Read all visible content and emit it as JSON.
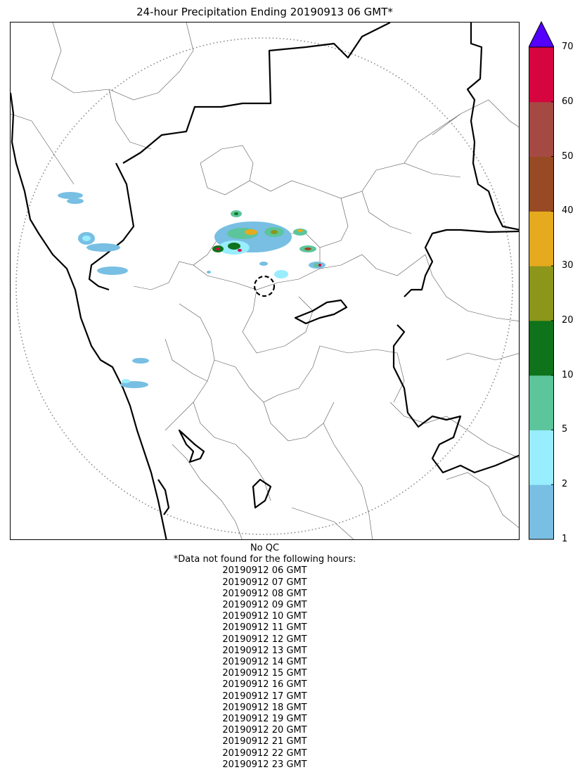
{
  "title": "24-hour Precipitation Ending 20190913 06 GMT*",
  "colorbar": {
    "ticks": [
      "1",
      "2",
      "5",
      "10",
      "20",
      "30",
      "40",
      "50",
      "60",
      "70"
    ],
    "colors": [
      "#78bfe3",
      "#98edff",
      "#5cc59b",
      "#0e731a",
      "#8b961a",
      "#e6aa1e",
      "#974a23",
      "#a54a43",
      "#d6053f"
    ],
    "extend_color": "#5300ff"
  },
  "notes": {
    "qc": "No QC",
    "missing_header": "*Data not found for the following hours:",
    "missing_hours": [
      "20190912 06 GMT",
      "20190912 07 GMT",
      "20190912 08 GMT",
      "20190912 09 GMT",
      "20190912 10 GMT",
      "20190912 11 GMT",
      "20190912 12 GMT",
      "20190912 13 GMT",
      "20190912 14 GMT",
      "20190912 15 GMT",
      "20190912 16 GMT",
      "20190912 17 GMT",
      "20190912 18 GMT",
      "20190912 19 GMT",
      "20190912 20 GMT",
      "20190912 21 GMT",
      "20190912 22 GMT",
      "20190912 23 GMT"
    ]
  }
}
